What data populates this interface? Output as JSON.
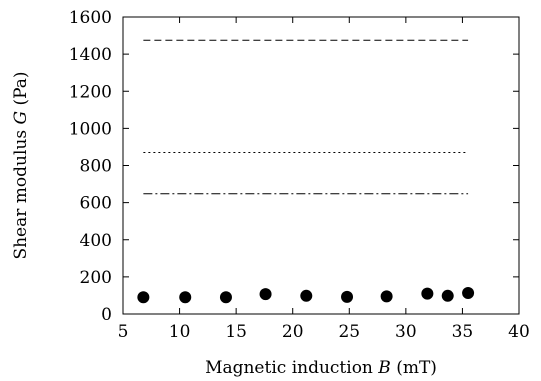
{
  "chart_data": {
    "type": "scatter",
    "xlabel": {
      "prefix": "Magnetic induction ",
      "symbol": "B",
      "suffix": " (mT)"
    },
    "ylabel": {
      "prefix": "Shear modulus ",
      "symbol": "G",
      "suffix": " (Pa)"
    },
    "xlim": [
      5,
      40
    ],
    "ylim": [
      0,
      1600
    ],
    "xticks": [
      5,
      10,
      15,
      20,
      25,
      30,
      35,
      40
    ],
    "yticks": [
      0,
      200,
      400,
      600,
      800,
      1000,
      1200,
      1400,
      1600
    ],
    "grid": false,
    "series": [
      {
        "marker": "filled-circle",
        "color": "#000000",
        "x": [
          6.8,
          10.5,
          14.1,
          17.6,
          21.2,
          24.8,
          28.3,
          31.9,
          33.7,
          35.5
        ],
        "y": [
          90,
          90,
          90,
          107,
          98,
          92,
          95,
          110,
          98,
          113
        ]
      }
    ],
    "reference_lines": [
      {
        "y": 1475,
        "x_range": [
          6.8,
          35.5
        ],
        "style": "dashed",
        "color": "#000000"
      },
      {
        "y": 870,
        "x_range": [
          6.8,
          35.5
        ],
        "style": "dotted",
        "color": "#000000"
      },
      {
        "y": 648,
        "x_range": [
          6.8,
          35.5
        ],
        "style": "dash-dot",
        "color": "#000000"
      }
    ]
  }
}
